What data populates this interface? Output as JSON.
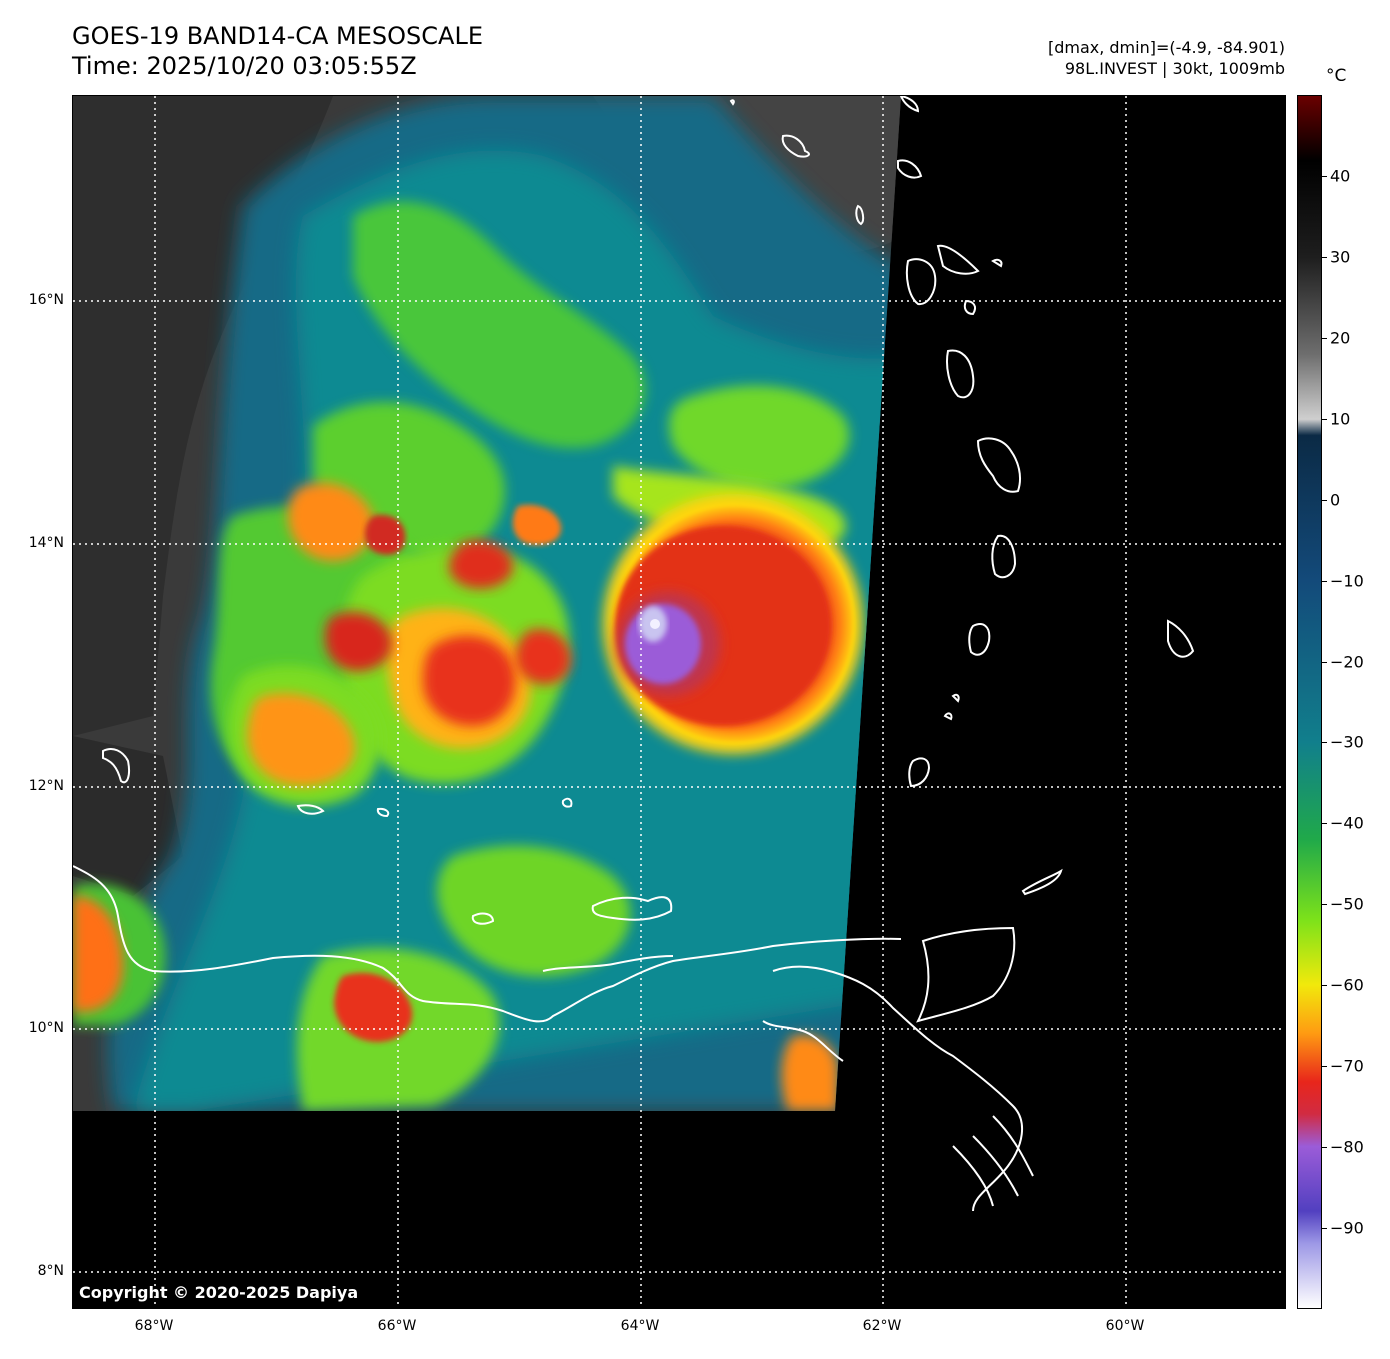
{
  "header": {
    "title_line1": "GOES-19 BAND14-CA MESOSCALE",
    "title_line2": "Time: 2025/10/20 03:05:55Z",
    "range_text": "[dmax, dmin]=(-4.9, -84.901)",
    "storm_text": "98L.INVEST | 30kt, 1009mb"
  },
  "map": {
    "copyright": "Copyright © 2020-2025 Dapiya",
    "lat_ticks": [
      "16°N",
      "14°N",
      "12°N",
      "10°N",
      "8°N"
    ],
    "lon_ticks": [
      "68°W",
      "66°W",
      "64°W",
      "62°W",
      "60°W"
    ],
    "storm_center": {
      "lat": "13.3°N",
      "lon": "63.9°W"
    },
    "gridline_color": "#ffffff",
    "coastline_color": "#ffffff"
  },
  "colorbar": {
    "unit": "°C",
    "ticks": [
      "40",
      "30",
      "20",
      "10",
      "0",
      "−10",
      "−20",
      "−30",
      "−40",
      "−50",
      "−60",
      "−70",
      "−80",
      "−90"
    ],
    "range": [
      -100,
      50
    ],
    "stops": [
      {
        "value": 50,
        "color": "#6a0000"
      },
      {
        "value": 42,
        "color": "#000000"
      },
      {
        "value": 30,
        "color": "#1e1e1e"
      },
      {
        "value": 18,
        "color": "#6e6e6e"
      },
      {
        "value": 10,
        "color": "#cfcfcf"
      },
      {
        "value": 8,
        "color": "#0b2a45"
      },
      {
        "value": -10,
        "color": "#134a7a"
      },
      {
        "value": -30,
        "color": "#117f8c"
      },
      {
        "value": -42,
        "color": "#20a94a"
      },
      {
        "value": -52,
        "color": "#7de21a"
      },
      {
        "value": -60,
        "color": "#f1e90c"
      },
      {
        "value": -66,
        "color": "#ff9b12"
      },
      {
        "value": -72,
        "color": "#e8261b"
      },
      {
        "value": -76,
        "color": "#d12b42"
      },
      {
        "value": -80,
        "color": "#9b5cd8"
      },
      {
        "value": -88,
        "color": "#5240c0"
      },
      {
        "value": -92,
        "color": "#9d98e6"
      },
      {
        "value": -100,
        "color": "#ffffff"
      }
    ]
  }
}
